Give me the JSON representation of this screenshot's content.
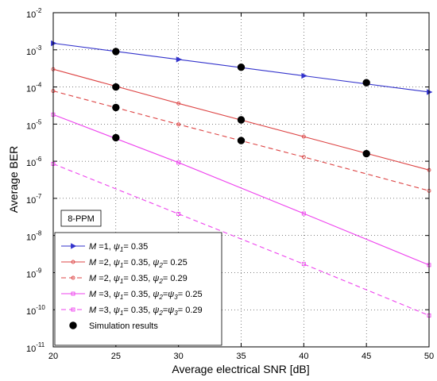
{
  "chart_data": {
    "type": "line",
    "title": "",
    "xlabel": "Average electrical SNR [dB]",
    "ylabel": "Average BER",
    "xlim": [
      20,
      50
    ],
    "ylim_exponents": [
      -11,
      -2
    ],
    "y_scale": "log",
    "grid": true,
    "x_ticks": [
      20,
      25,
      30,
      35,
      40,
      45,
      50
    ],
    "y_tick_base": "10",
    "y_tick_exponents": [
      -11,
      -10,
      -9,
      -8,
      -7,
      -6,
      -5,
      -4,
      -3,
      -2
    ],
    "annotation": "8-PPM",
    "legend_position": "bottom-left",
    "series": [
      {
        "name": "M =1, ψ1= 0.35",
        "name_parts": [
          [
            "M",
            "i"
          ],
          [
            " =1, ",
            ""
          ],
          [
            "ψ",
            "i"
          ],
          [
            "1",
            "sub"
          ],
          [
            "= 0.35",
            ""
          ]
        ],
        "color": "#3333cc",
        "dash": false,
        "marker": "triangle-right",
        "x": [
          20,
          30,
          40,
          50
        ],
        "y": [
          0.0015,
          0.00055,
          0.0002,
          7.3e-05
        ]
      },
      {
        "name": "M =2, ψ1= 0.35, ψ2= 0.25",
        "name_parts": [
          [
            "M",
            "i"
          ],
          [
            " =2, ",
            ""
          ],
          [
            "ψ",
            "i"
          ],
          [
            "1",
            "sub"
          ],
          [
            "= 0.35, ",
            ""
          ],
          [
            "ψ",
            "i"
          ],
          [
            "2",
            "sub"
          ],
          [
            "= 0.25",
            ""
          ]
        ],
        "color": "#dd4444",
        "dash": false,
        "marker": "circle",
        "x": [
          20,
          30,
          40,
          50
        ],
        "y": [
          0.0003,
          3.6e-05,
          4.6e-06,
          5.8e-07
        ]
      },
      {
        "name": "M =2, ψ1= 0.35, ψ2= 0.29",
        "name_parts": [
          [
            "M",
            "i"
          ],
          [
            " =2, ",
            ""
          ],
          [
            "ψ",
            "i"
          ],
          [
            "1",
            "sub"
          ],
          [
            "= 0.35, ",
            ""
          ],
          [
            "ψ",
            "i"
          ],
          [
            "2",
            "sub"
          ],
          [
            "= 0.29",
            ""
          ]
        ],
        "color": "#dd4444",
        "dash": true,
        "marker": "circle",
        "x": [
          20,
          30,
          40,
          50
        ],
        "y": [
          7.8e-05,
          9.8e-06,
          1.3e-06,
          1.6e-07
        ]
      },
      {
        "name": "M =3, ψ1= 0.35, ψ2=ψ3= 0.25",
        "name_parts": [
          [
            "M",
            "i"
          ],
          [
            " =3, ",
            ""
          ],
          [
            "ψ",
            "i"
          ],
          [
            "1",
            "sub"
          ],
          [
            "= 0.35, ",
            ""
          ],
          [
            "ψ",
            "i"
          ],
          [
            "2",
            "sub"
          ],
          [
            "=",
            ""
          ],
          [
            "ψ",
            "i"
          ],
          [
            "3",
            "sub"
          ],
          [
            "= 0.25",
            ""
          ]
        ],
        "color": "#ee44ee",
        "dash": false,
        "marker": "square",
        "x": [
          20,
          30,
          40,
          50
        ],
        "y": [
          1.8e-05,
          9.2e-07,
          3.9e-08,
          1.6e-09
        ]
      },
      {
        "name": "M =3, ψ1= 0.35, ψ2=ψ3= 0.29",
        "name_parts": [
          [
            "M",
            "i"
          ],
          [
            " =3, ",
            ""
          ],
          [
            "ψ",
            "i"
          ],
          [
            "1",
            "sub"
          ],
          [
            "= 0.35, ",
            ""
          ],
          [
            "ψ",
            "i"
          ],
          [
            "2",
            "sub"
          ],
          [
            "=",
            ""
          ],
          [
            "ψ",
            "i"
          ],
          [
            "3",
            "sub"
          ],
          [
            "= 0.29",
            ""
          ]
        ],
        "color": "#ee44ee",
        "dash": true,
        "marker": "square",
        "x": [
          20,
          30,
          40,
          50
        ],
        "y": [
          8.5e-07,
          3.8e-08,
          1.7e-09,
          7e-11
        ]
      },
      {
        "name": "Simulation results",
        "name_parts": [
          [
            "Simulation results",
            ""
          ]
        ],
        "color": "#000000",
        "dash": false,
        "marker": "filled-circle",
        "line": false,
        "x": [
          25,
          35,
          45,
          25,
          35,
          45,
          25,
          35,
          25
        ],
        "y": [
          0.0009,
          0.00034,
          0.00013,
          0.0001,
          1.3e-05,
          1.6e-06,
          2.8e-05,
          3.6e-06,
          4.3e-06
        ]
      }
    ]
  }
}
